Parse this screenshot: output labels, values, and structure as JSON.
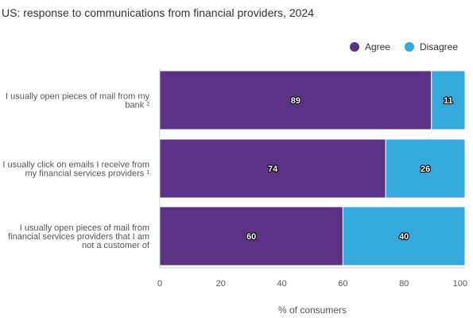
{
  "chart_data": {
    "type": "bar",
    "orientation": "horizontal",
    "stacked": true,
    "title": "US: response to communications from financial providers, 2024",
    "xlabel": "% of consumers",
    "ylabel": "",
    "xlim": [
      0,
      100
    ],
    "x_ticks": [
      "0",
      "20",
      "40",
      "60",
      "80",
      "100"
    ],
    "grid": false,
    "legend_position": "top-right",
    "categories": [
      [
        "I usually open pieces of mail from my",
        "bank ²"
      ],
      [
        "I usually click on emails I receive from",
        "my financial services providers ¹"
      ],
      [
        "I usually open pieces of mail from",
        "financial services providers that I am",
        "not a customer of"
      ]
    ],
    "series": [
      {
        "name": "Agree",
        "color": "#5c3287",
        "values": [
          89,
          74,
          60
        ]
      },
      {
        "name": "Disagree",
        "color": "#35a8dc",
        "values": [
          11,
          26,
          40
        ]
      }
    ]
  }
}
